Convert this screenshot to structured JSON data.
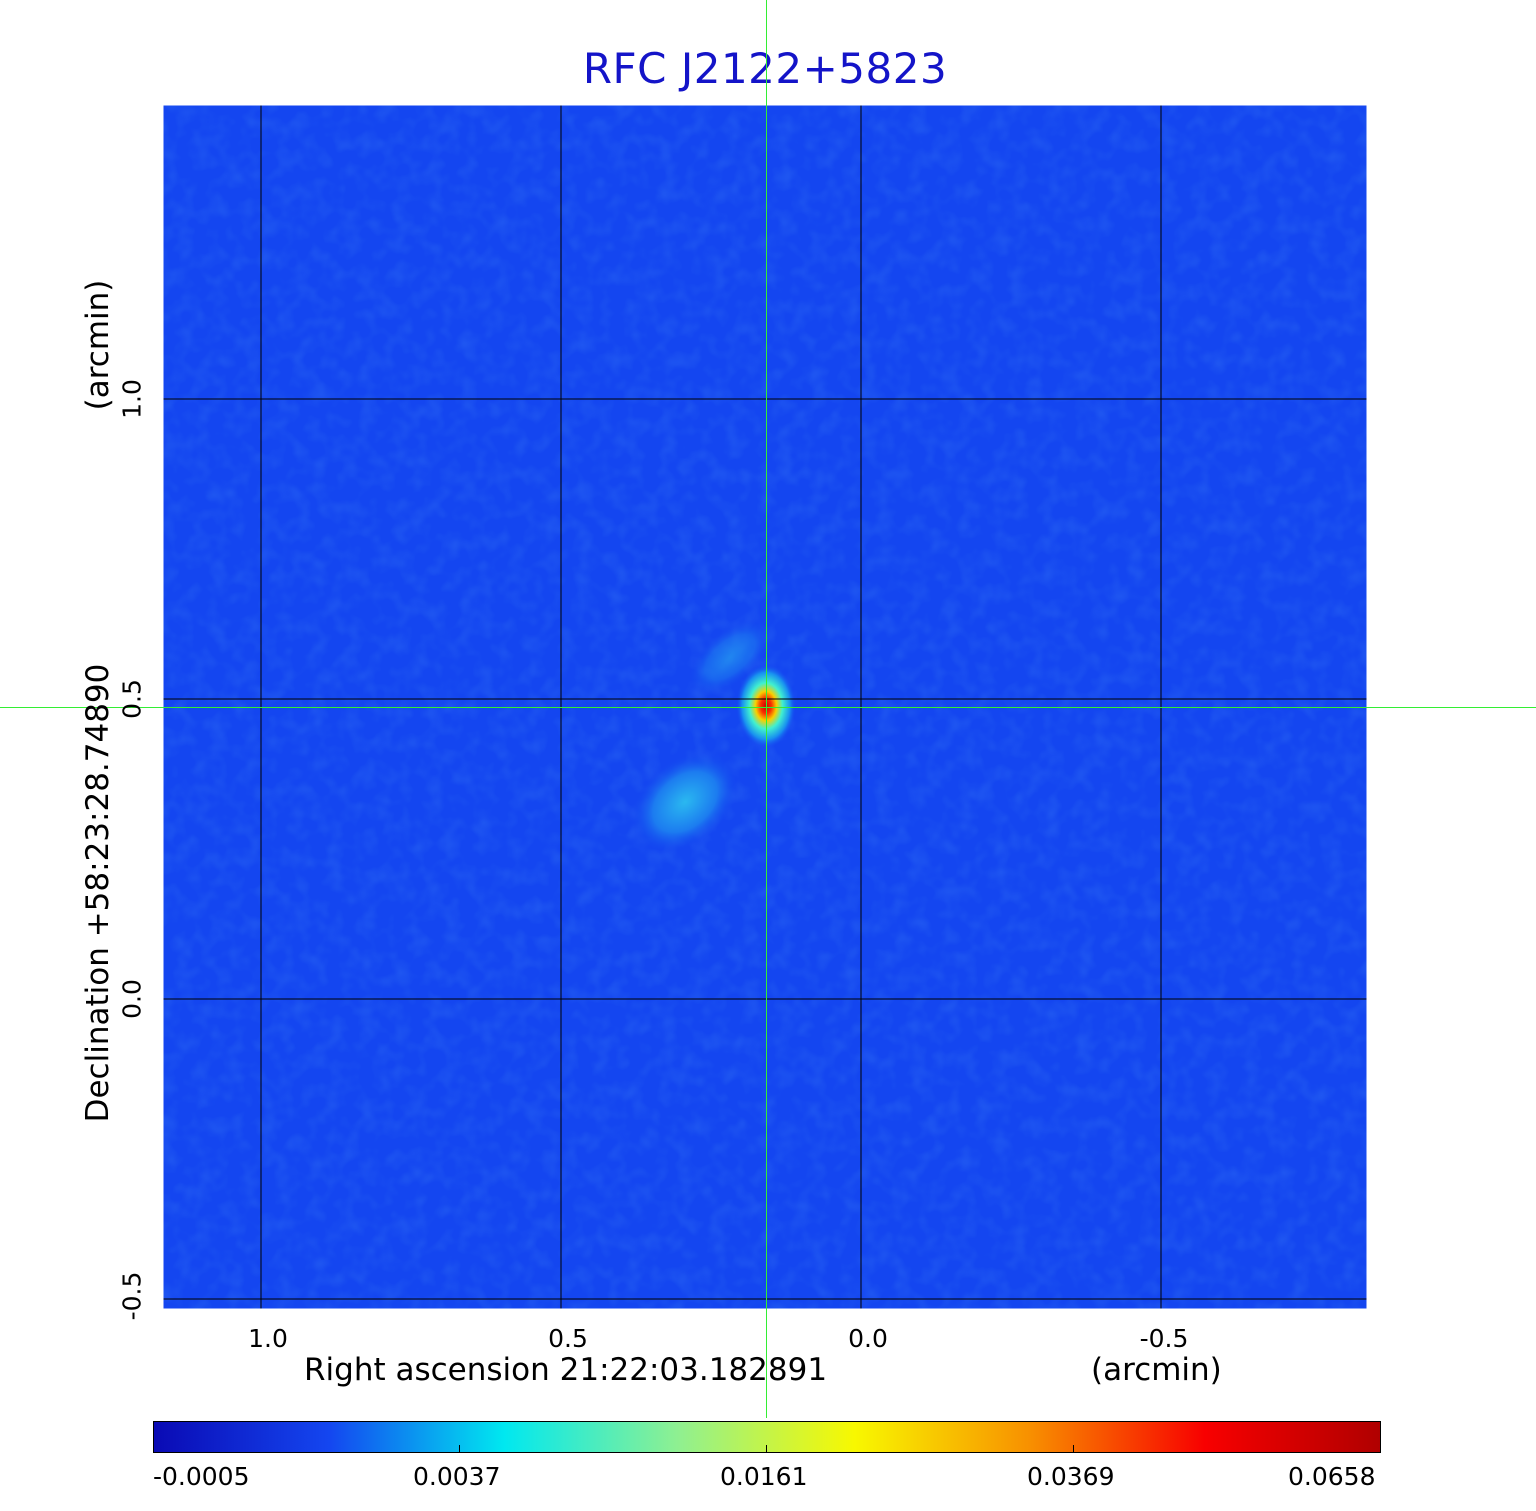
{
  "title": "RFC J2122+5823",
  "x_axis": {
    "label": "Right ascension  21:22:03.182891",
    "unit": "(arcmin)",
    "ticks": [
      "1.0",
      "0.5",
      "0.0",
      "-0.5"
    ]
  },
  "y_axis": {
    "label": "Declination  +58:23:28.74890",
    "unit": "(arcmin)",
    "ticks": [
      "1.0",
      "0.5",
      "0.0",
      "-0.5"
    ]
  },
  "colorbar": {
    "ticks": [
      "-0.0005",
      "0.0037",
      "0.0161",
      "0.0369",
      "0.0658"
    ],
    "colors": [
      "#0a0ab4",
      "#1446f0",
      "#00e8f0",
      "#90f090",
      "#f8f800",
      "#f89000",
      "#f80000",
      "#b00000"
    ]
  },
  "colors": {
    "background_map": "#1446f0",
    "crosshair": "#33ee33",
    "title": "#1414c8",
    "grid": "#000000"
  }
}
